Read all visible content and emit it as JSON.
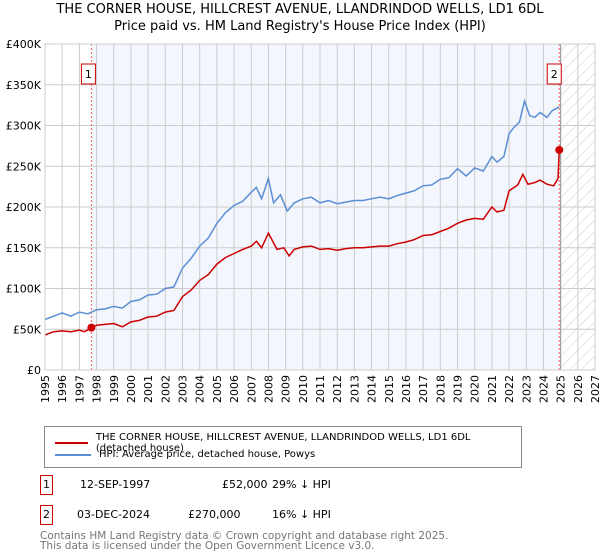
{
  "chart_data": {
    "type": "line",
    "title": "THE CORNER HOUSE, HILLCREST AVENUE, LLANDRINDOD WELLS, LD1 6DL",
    "subtitle": "Price paid vs. HM Land Registry's House Price Index (HPI)",
    "xlim": [
      1995,
      2027
    ],
    "ylim": [
      0,
      400000
    ],
    "x_ticks": [
      "1995",
      "1996",
      "1997",
      "1998",
      "1999",
      "2000",
      "2001",
      "2002",
      "2003",
      "2004",
      "2005",
      "2006",
      "2007",
      "2008",
      "2009",
      "2010",
      "2011",
      "2012",
      "2013",
      "2014",
      "2015",
      "2016",
      "2017",
      "2018",
      "2019",
      "2020",
      "2021",
      "2022",
      "2023",
      "2024",
      "2025",
      "2026",
      "2027"
    ],
    "y_ticks": [
      {
        "v": 0,
        "label": "£0"
      },
      {
        "v": 50000,
        "label": "£50K"
      },
      {
        "v": 100000,
        "label": "£100K"
      },
      {
        "v": 150000,
        "label": "£150K"
      },
      {
        "v": 200000,
        "label": "£200K"
      },
      {
        "v": 250000,
        "label": "£250K"
      },
      {
        "v": 300000,
        "label": "£300K"
      },
      {
        "v": 350000,
        "label": "£350K"
      },
      {
        "v": 400000,
        "label": "£400K"
      }
    ],
    "grid": true,
    "shaded_range": [
      1997.7,
      2024.92
    ],
    "hatched_from": 2025.0,
    "series": [
      {
        "name": "THE CORNER HOUSE, HILLCREST AVENUE, LLANDRINDOD WELLS, LD1 6DL (detached house)",
        "color": "#cc0000",
        "x": [
          1995,
          1995.5,
          1996,
          1996.5,
          1997,
          1997.3,
          1997.7,
          1998,
          1998.5,
          1999,
          1999.5,
          2000,
          2000.5,
          2001,
          2001.5,
          2002,
          2002.5,
          2003,
          2003.5,
          2004,
          2004.5,
          2005,
          2005.5,
          2006,
          2006.5,
          2007,
          2007.3,
          2007.6,
          2008,
          2008.5,
          2008.9,
          2009.2,
          2009.5,
          2010,
          2010.5,
          2011,
          2011.5,
          2012,
          2012.5,
          2013,
          2013.5,
          2014,
          2014.5,
          2015,
          2015.5,
          2016,
          2016.5,
          2017,
          2017.5,
          2018,
          2018.5,
          2019,
          2019.5,
          2020,
          2020.5,
          2021,
          2021.3,
          2021.7,
          2022,
          2022.5,
          2022.8,
          2023.1,
          2023.5,
          2023.8,
          2024.2,
          2024.6,
          2024.85,
          2024.92
        ],
        "y": [
          43000,
          47000,
          48000,
          47000,
          49000,
          47000,
          52000,
          55000,
          56000,
          57000,
          53000,
          59000,
          61000,
          65000,
          66000,
          71000,
          73000,
          90000,
          98000,
          110000,
          117000,
          130000,
          138000,
          143000,
          148000,
          152000,
          158000,
          150000,
          168000,
          148000,
          150000,
          140000,
          148000,
          151000,
          152000,
          148000,
          149000,
          147000,
          149000,
          150000,
          150000,
          151000,
          152000,
          152000,
          155000,
          157000,
          160000,
          165000,
          166000,
          170000,
          174000,
          180000,
          184000,
          186000,
          185000,
          200000,
          194000,
          196000,
          220000,
          227000,
          240000,
          228000,
          230000,
          233000,
          228000,
          226000,
          235000,
          270000
        ]
      },
      {
        "name": "HPI: Average price, detached house, Powys",
        "color": "#5b8fd4",
        "x": [
          1995,
          1995.5,
          1996,
          1996.5,
          1997,
          1997.5,
          1998,
          1998.5,
          1999,
          1999.5,
          2000,
          2000.5,
          2001,
          2001.5,
          2002,
          2002.5,
          2003,
          2003.5,
          2004,
          2004.5,
          2005,
          2005.5,
          2006,
          2006.5,
          2007,
          2007.3,
          2007.6,
          2008,
          2008.3,
          2008.7,
          2009.1,
          2009.5,
          2010,
          2010.5,
          2011,
          2011.5,
          2012,
          2012.5,
          2013,
          2013.5,
          2014,
          2014.5,
          2015,
          2015.5,
          2016,
          2016.5,
          2017,
          2017.5,
          2018,
          2018.5,
          2019,
          2019.5,
          2020,
          2020.5,
          2021,
          2021.3,
          2021.7,
          2022,
          2022.3,
          2022.6,
          2022.9,
          2023.2,
          2023.5,
          2023.8,
          2024.2,
          2024.5,
          2024.92
        ],
        "y": [
          62000,
          66000,
          70000,
          66000,
          71000,
          69000,
          74000,
          75000,
          78000,
          76000,
          84000,
          86000,
          92000,
          93000,
          100000,
          102000,
          125000,
          137000,
          152000,
          162000,
          180000,
          193000,
          202000,
          207000,
          218000,
          224000,
          210000,
          235000,
          205000,
          215000,
          195000,
          205000,
          210000,
          212000,
          205000,
          208000,
          204000,
          206000,
          208000,
          208000,
          210000,
          212000,
          210000,
          214000,
          217000,
          220000,
          226000,
          227000,
          234000,
          236000,
          247000,
          238000,
          248000,
          244000,
          262000,
          255000,
          262000,
          290000,
          298000,
          304000,
          330000,
          312000,
          310000,
          316000,
          310000,
          318000,
          323000
        ]
      }
    ],
    "sales": [
      {
        "label": "1",
        "x": 1997.7,
        "y": 52000
      },
      {
        "label": "2",
        "x": 2024.92,
        "y": 270000
      }
    ]
  },
  "legend": {
    "red": "THE CORNER HOUSE, HILLCREST AVENUE, LLANDRINDOD WELLS, LD1 6DL (detached house)",
    "blue": "HPI: Average price, detached house, Powys"
  },
  "transactions": [
    {
      "n": "1",
      "date": "12-SEP-1997",
      "price": "£52,000",
      "hpi": "29% ↓ HPI"
    },
    {
      "n": "2",
      "date": "03-DEC-2024",
      "price": "£270,000",
      "hpi": "16% ↓ HPI"
    }
  ],
  "footer": [
    "Contains HM Land Registry data © Crown copyright and database right 2025.",
    "This data is licensed under the Open Government Licence v3.0."
  ]
}
